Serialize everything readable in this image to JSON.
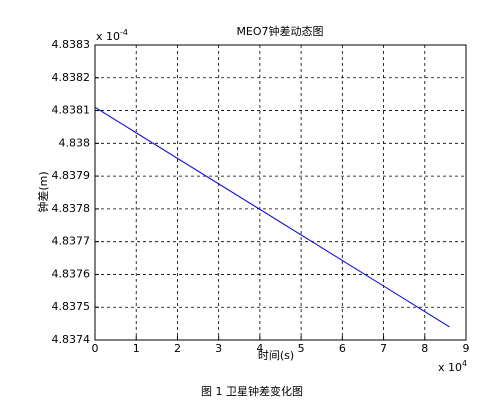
{
  "chart_data": {
    "type": "line",
    "title": "MEO7钟差动态图",
    "x_label": "时间(s)",
    "y_label": "钟差(m)",
    "x_multiplier": {
      "base": "x 10",
      "exponent": "4"
    },
    "y_multiplier": {
      "base": "x 10",
      "exponent": "-4"
    },
    "caption": "图 1  卫星钟差变化图",
    "grid": true,
    "xlim": [
      0,
      9
    ],
    "xticks": [
      0,
      1,
      2,
      3,
      4,
      5,
      6,
      7,
      8,
      9
    ],
    "ylim": [
      4.8374,
      4.8383
    ],
    "yticks": [
      4.8374,
      4.8375,
      4.8376,
      4.8377,
      4.8378,
      4.8379,
      4.838,
      4.8381,
      4.8382,
      4.8383
    ],
    "series": [
      {
        "color": "#0000ff",
        "x": [
          0,
          8.6
        ],
        "values": [
          4.83811,
          4.83744
        ]
      }
    ]
  }
}
